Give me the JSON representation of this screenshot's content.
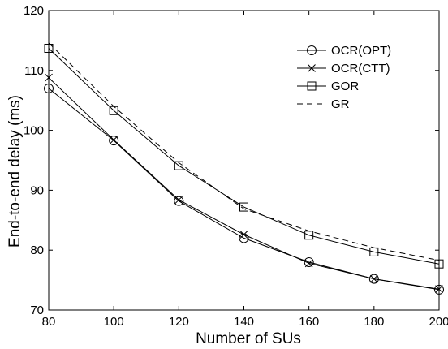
{
  "chart_data": {
    "type": "line",
    "title": "",
    "xlabel": "Number of SUs",
    "ylabel": "End-to-end delay (ms)",
    "x": [
      80,
      100,
      120,
      140,
      160,
      180,
      200
    ],
    "xlim": [
      80,
      200
    ],
    "ylim": [
      70,
      120
    ],
    "xticks": [
      "80",
      "100",
      "120",
      "140",
      "160",
      "180",
      "200"
    ],
    "yticks": [
      "70",
      "80",
      "90",
      "100",
      "110",
      "120"
    ],
    "grid": false,
    "legend_position": "top-right",
    "series": [
      {
        "name": "OCR(OPT)",
        "marker": "circle",
        "dash": "solid",
        "values": [
          107.0,
          98.3,
          88.2,
          82.0,
          78.0,
          75.2,
          73.4
        ]
      },
      {
        "name": "OCR(CTT)",
        "marker": "x",
        "dash": "solid",
        "values": [
          108.8,
          98.4,
          88.4,
          82.6,
          77.8,
          75.2,
          73.5
        ]
      },
      {
        "name": "GOR",
        "marker": "square",
        "dash": "solid",
        "values": [
          113.7,
          103.3,
          94.1,
          87.2,
          82.5,
          79.7,
          77.7
        ]
      },
      {
        "name": "GR",
        "marker": "none",
        "dash": "dashed",
        "values": [
          114.6,
          104.0,
          94.6,
          86.9,
          83.2,
          80.4,
          78.3
        ]
      }
    ],
    "colors": {
      "axis": "#000000",
      "series": "#000000"
    }
  }
}
